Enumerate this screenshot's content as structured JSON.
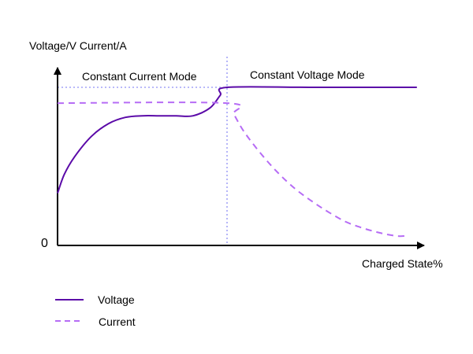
{
  "chart_data": {
    "type": "line",
    "y_axis_label": "Voltage/V Current/A",
    "x_axis_label": "Charged State%",
    "origin_label": "0",
    "annotations": {
      "left_region": "Constant Current Mode",
      "right_region": "Constant Voltage Mode"
    },
    "mode_boundary_x": 50,
    "xlim": [
      0,
      110
    ],
    "ylim": [
      0,
      1.2
    ],
    "series": [
      {
        "name": "Voltage",
        "color": "#5b0aa8",
        "style": "solid",
        "x": [
          0,
          2,
          5,
          10,
          15,
          20,
          25,
          30,
          35,
          40,
          45,
          48,
          50,
          75,
          106
        ],
        "y": [
          0.33,
          0.45,
          0.56,
          0.69,
          0.77,
          0.81,
          0.82,
          0.82,
          0.82,
          0.82,
          0.87,
          0.95,
          1.0,
          1.0,
          1.0
        ]
      },
      {
        "name": "Current",
        "color": "#b66cf5",
        "style": "dashed",
        "x": [
          0,
          50,
          52,
          55,
          60,
          65,
          70,
          75,
          80,
          85,
          90,
          95,
          100,
          103
        ],
        "y": [
          0.9,
          0.9,
          0.83,
          0.72,
          0.58,
          0.46,
          0.36,
          0.28,
          0.21,
          0.15,
          0.11,
          0.08,
          0.06,
          0.06
        ]
      }
    ],
    "reference_lines": [
      {
        "orientation": "vertical",
        "x": 50,
        "color": "#8f8ff5",
        "style": "dotted"
      },
      {
        "orientation": "horizontal",
        "y": 1.0,
        "x_range": [
          0,
          50
        ],
        "color": "#8f8ff5",
        "style": "dotted"
      }
    ],
    "legend": {
      "placement": "bottom-left",
      "entries": [
        "Voltage",
        "Current"
      ]
    },
    "grid": false
  }
}
